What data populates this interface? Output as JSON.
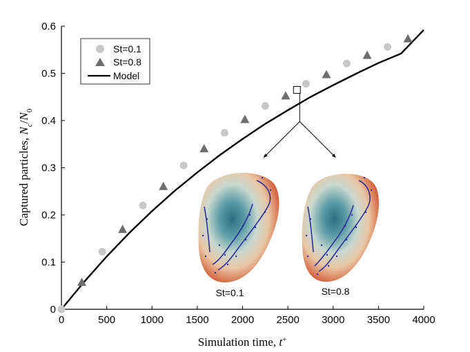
{
  "chart_data": {
    "type": "scatter",
    "xlabel_text": "Simulation time, ",
    "xlabel_var": "t",
    "xlabel_sup": "+",
    "ylabel_text": "Captured particles, ",
    "ylabel_var": "N",
    "ylabel_sub_c": "c",
    "ylabel_slash": "/",
    "ylabel_sub_0": "0",
    "xlim": [
      0,
      4000
    ],
    "ylim": [
      0,
      0.6
    ],
    "xticks": [
      0,
      500,
      1000,
      1500,
      2000,
      2500,
      3000,
      3500,
      4000
    ],
    "yticks": [
      0,
      0.1,
      0.2,
      0.3,
      0.4,
      0.5,
      0.6
    ],
    "xtick_labels": [
      "0",
      "500",
      "1000",
      "1500",
      "2000",
      "2500",
      "3000",
      "3500",
      "4000"
    ],
    "ytick_labels": [
      "0",
      "0.1",
      "0.2",
      "0.3",
      "0.4",
      "0.5",
      "0.6"
    ],
    "grid": false,
    "legend_position": "top-left",
    "series": [
      {
        "name": "St=0.1",
        "marker": "circle",
        "color": "#c8c8c8",
        "x": [
          0,
          450,
          900,
          1350,
          1800,
          2250,
          2700,
          3150,
          3600
        ],
        "y": [
          0.0,
          0.122,
          0.22,
          0.305,
          0.374,
          0.431,
          0.478,
          0.521,
          0.556
        ]
      },
      {
        "name": "St=0.8",
        "marker": "triangle",
        "color": "#6e6e6e",
        "x": [
          225,
          675,
          1125,
          1575,
          2025,
          2475,
          2925,
          3375,
          3825
        ],
        "y": [
          0.057,
          0.169,
          0.26,
          0.34,
          0.402,
          0.452,
          0.497,
          0.538,
          0.573
        ]
      },
      {
        "name": "Model",
        "type": "line",
        "color": "#000000",
        "x": [
          0,
          250,
          500,
          750,
          1000,
          1250,
          1500,
          1750,
          2000,
          2250,
          2500,
          2750,
          3000,
          3250,
          3500,
          3750,
          4000
        ],
        "y": [
          0.0,
          0.058,
          0.112,
          0.162,
          0.208,
          0.251,
          0.29,
          0.327,
          0.361,
          0.393,
          0.422,
          0.45,
          0.475,
          0.499,
          0.522,
          0.542,
          0.592
        ]
      }
    ],
    "annotations": {
      "zoom_box_at": [
        2600,
        0.465
      ],
      "inset_labels": [
        "St=0.1",
        "St=0.8"
      ]
    }
  }
}
